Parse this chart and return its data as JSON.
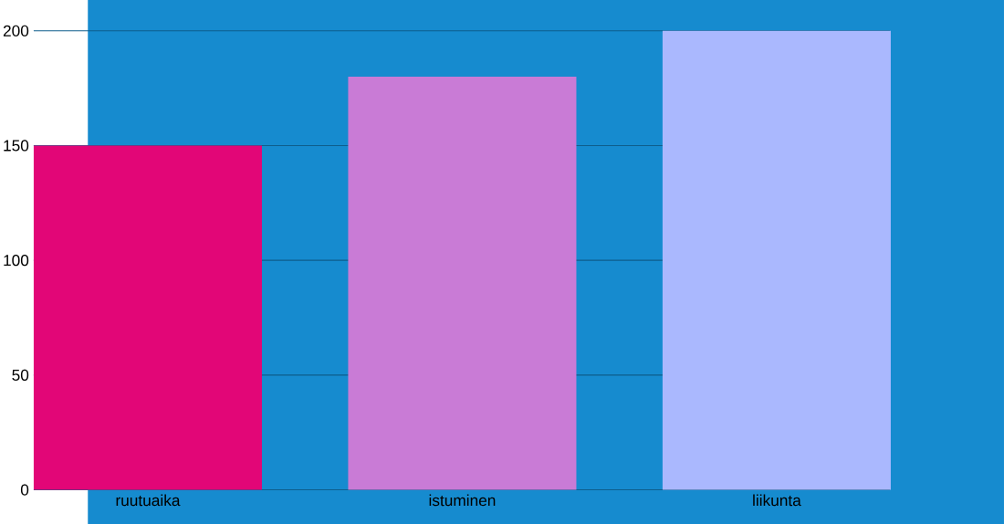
{
  "chart_data": {
    "type": "bar",
    "categories": [
      "ruutuaika",
      "istuminen",
      "liikunta"
    ],
    "values": [
      150,
      180,
      200
    ],
    "colors": [
      "#e20677",
      "#c97bd6",
      "#aab8fe"
    ],
    "ylim": [
      0,
      200
    ],
    "yticks": [
      0,
      50,
      100,
      150,
      200
    ],
    "grid": "y"
  }
}
